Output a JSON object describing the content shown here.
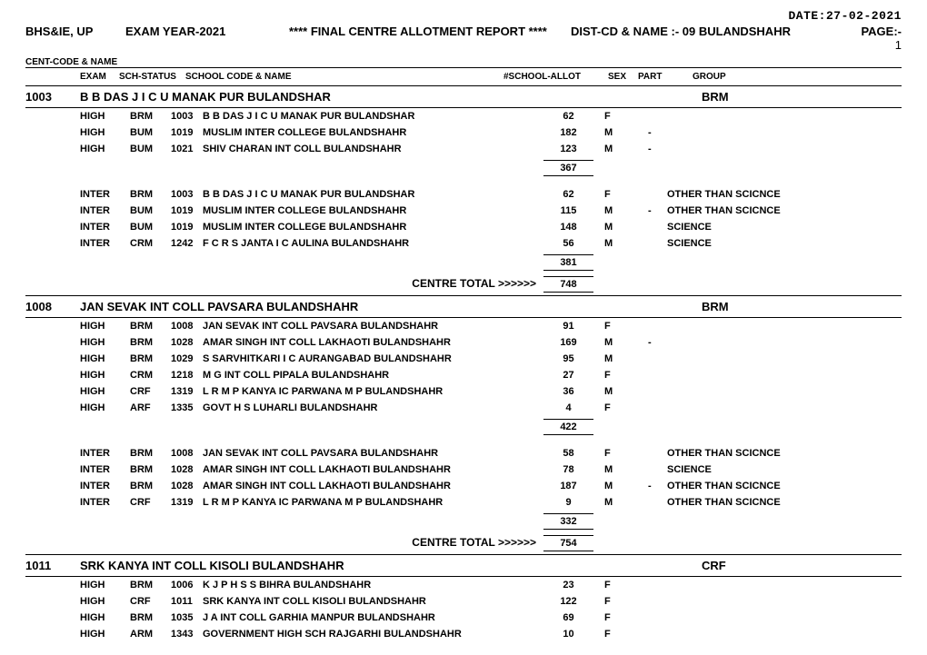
{
  "date_label": "DATE:27-02-2021",
  "header": {
    "org": "BHS&IE, UP",
    "exam_year": "EXAM YEAR-2021",
    "title": "****  FINAL CENTRE  ALLOTMENT REPORT   ****",
    "dist_label": "DIST-CD & NAME :-",
    "dist_value": "09 BULANDSHAHR",
    "page_label": "PAGE:-",
    "page_num": "1"
  },
  "sub_title": "CENT-CODE & NAME",
  "col_heads": {
    "exam": "EXAM",
    "status": "SCH-STATUS",
    "school": "SCHOOL CODE & NAME",
    "allot": "#SCHOOL-ALLOT",
    "sex": "SEX",
    "part": "PART",
    "group": "GROUP"
  },
  "centres": [
    {
      "code": "1003",
      "name": "B B DAS J I C U MANAK PUR BULANDSHAR",
      "grp": "BRM",
      "sections": [
        {
          "rows": [
            {
              "exam": "HIGH",
              "status": "BRM",
              "sch_code": "1003",
              "sch_name": "B B DAS J I C U MANAK PUR BULANDSHAR",
              "allot": "62",
              "sex": "F",
              "part": "",
              "group": ""
            },
            {
              "exam": "HIGH",
              "status": "BUM",
              "sch_code": "1019",
              "sch_name": "MUSLIM INTER COLLEGE BULANDSHAHR",
              "allot": "182",
              "sex": "M",
              "part": "-",
              "group": ""
            },
            {
              "exam": "HIGH",
              "status": "BUM",
              "sch_code": "1021",
              "sch_name": "SHIV CHARAN INT COLL BULANDSHAHR",
              "allot": "123",
              "sex": "M",
              "part": "-",
              "group": ""
            }
          ],
          "subtotal": "367"
        },
        {
          "rows": [
            {
              "exam": "INTER",
              "status": "BRM",
              "sch_code": "1003",
              "sch_name": "B B DAS J I C U MANAK PUR BULANDSHAR",
              "allot": "62",
              "sex": "F",
              "part": "",
              "group": "OTHER THAN SCICNCE"
            },
            {
              "exam": "INTER",
              "status": "BUM",
              "sch_code": "1019",
              "sch_name": "MUSLIM INTER COLLEGE BULANDSHAHR",
              "allot": "115",
              "sex": "M",
              "part": "-",
              "group": "OTHER THAN SCICNCE"
            },
            {
              "exam": "INTER",
              "status": "BUM",
              "sch_code": "1019",
              "sch_name": "MUSLIM INTER COLLEGE BULANDSHAHR",
              "allot": "148",
              "sex": "M",
              "part": "",
              "group": "SCIENCE"
            },
            {
              "exam": "INTER",
              "status": "CRM",
              "sch_code": "1242",
              "sch_name": "F C R S JANTA I C AULINA BULANDSHAHR",
              "allot": "56",
              "sex": "M",
              "part": "",
              "group": "SCIENCE"
            }
          ],
          "subtotal": "381"
        }
      ],
      "grand_label": "CENTRE TOTAL >>>>>>",
      "grand_total": "748"
    },
    {
      "code": "1008",
      "name": "JAN SEVAK INT COLL PAVSARA BULANDSHAHR",
      "grp": "BRM",
      "sections": [
        {
          "rows": [
            {
              "exam": "HIGH",
              "status": "BRM",
              "sch_code": "1008",
              "sch_name": "JAN SEVAK INT COLL PAVSARA BULANDSHAHR",
              "allot": "91",
              "sex": "F",
              "part": "",
              "group": ""
            },
            {
              "exam": "HIGH",
              "status": "BRM",
              "sch_code": "1028",
              "sch_name": "AMAR SINGH INT COLL LAKHAOTI BULANDSHAHR",
              "allot": "169",
              "sex": "M",
              "part": "-",
              "group": ""
            },
            {
              "exam": "HIGH",
              "status": "BRM",
              "sch_code": "1029",
              "sch_name": "S SARVHITKARI I C AURANGABAD BULANDSHAHR",
              "allot": "95",
              "sex": "M",
              "part": "",
              "group": ""
            },
            {
              "exam": "HIGH",
              "status": "CRM",
              "sch_code": "1218",
              "sch_name": "M G INT COLL PIPALA BULANDSHAHR",
              "allot": "27",
              "sex": "F",
              "part": "",
              "group": ""
            },
            {
              "exam": "HIGH",
              "status": "CRF",
              "sch_code": "1319",
              "sch_name": "L R M P KANYA IC PARWANA M P BULANDSHAHR",
              "allot": "36",
              "sex": "M",
              "part": "",
              "group": ""
            },
            {
              "exam": "HIGH",
              "status": "ARF",
              "sch_code": "1335",
              "sch_name": "GOVT H S LUHARLI BULANDSHAHR",
              "allot": "4",
              "sex": "F",
              "part": "",
              "group": ""
            }
          ],
          "subtotal": "422"
        },
        {
          "rows": [
            {
              "exam": "INTER",
              "status": "BRM",
              "sch_code": "1008",
              "sch_name": "JAN SEVAK INT COLL PAVSARA BULANDSHAHR",
              "allot": "58",
              "sex": "F",
              "part": "",
              "group": "OTHER THAN SCICNCE"
            },
            {
              "exam": "INTER",
              "status": "BRM",
              "sch_code": "1028",
              "sch_name": "AMAR SINGH INT COLL LAKHAOTI BULANDSHAHR",
              "allot": "78",
              "sex": "M",
              "part": "",
              "group": "SCIENCE"
            },
            {
              "exam": "INTER",
              "status": "BRM",
              "sch_code": "1028",
              "sch_name": "AMAR SINGH INT COLL LAKHAOTI BULANDSHAHR",
              "allot": "187",
              "sex": "M",
              "part": "-",
              "group": "OTHER THAN SCICNCE"
            },
            {
              "exam": "INTER",
              "status": "CRF",
              "sch_code": "1319",
              "sch_name": "L R M P KANYA IC PARWANA M P BULANDSHAHR",
              "allot": "9",
              "sex": "M",
              "part": "",
              "group": "OTHER THAN SCICNCE"
            }
          ],
          "subtotal": "332"
        }
      ],
      "grand_label": "CENTRE TOTAL >>>>>>",
      "grand_total": "754"
    },
    {
      "code": "1011",
      "name": "SRK KANYA INT COLL KISOLI BULANDSHAHR",
      "grp": "CRF",
      "sections": [
        {
          "rows": [
            {
              "exam": "HIGH",
              "status": "BRM",
              "sch_code": "1006",
              "sch_name": "K J P H S S BIHRA BULANDSHAHR",
              "allot": "23",
              "sex": "F",
              "part": "",
              "group": ""
            },
            {
              "exam": "HIGH",
              "status": "CRF",
              "sch_code": "1011",
              "sch_name": "SRK KANYA INT COLL KISOLI BULANDSHAHR",
              "allot": "122",
              "sex": "F",
              "part": "",
              "group": ""
            },
            {
              "exam": "HIGH",
              "status": "BRM",
              "sch_code": "1035",
              "sch_name": "J A INT COLL GARHIA MANPUR BULANDSHAHR",
              "allot": "69",
              "sex": "F",
              "part": "",
              "group": ""
            },
            {
              "exam": "HIGH",
              "status": "ARM",
              "sch_code": "1343",
              "sch_name": "GOVERNMENT HIGH SCH RAJGARHI BULANDSHAHR",
              "allot": "10",
              "sex": "F",
              "part": "",
              "group": ""
            }
          ]
        }
      ]
    }
  ]
}
